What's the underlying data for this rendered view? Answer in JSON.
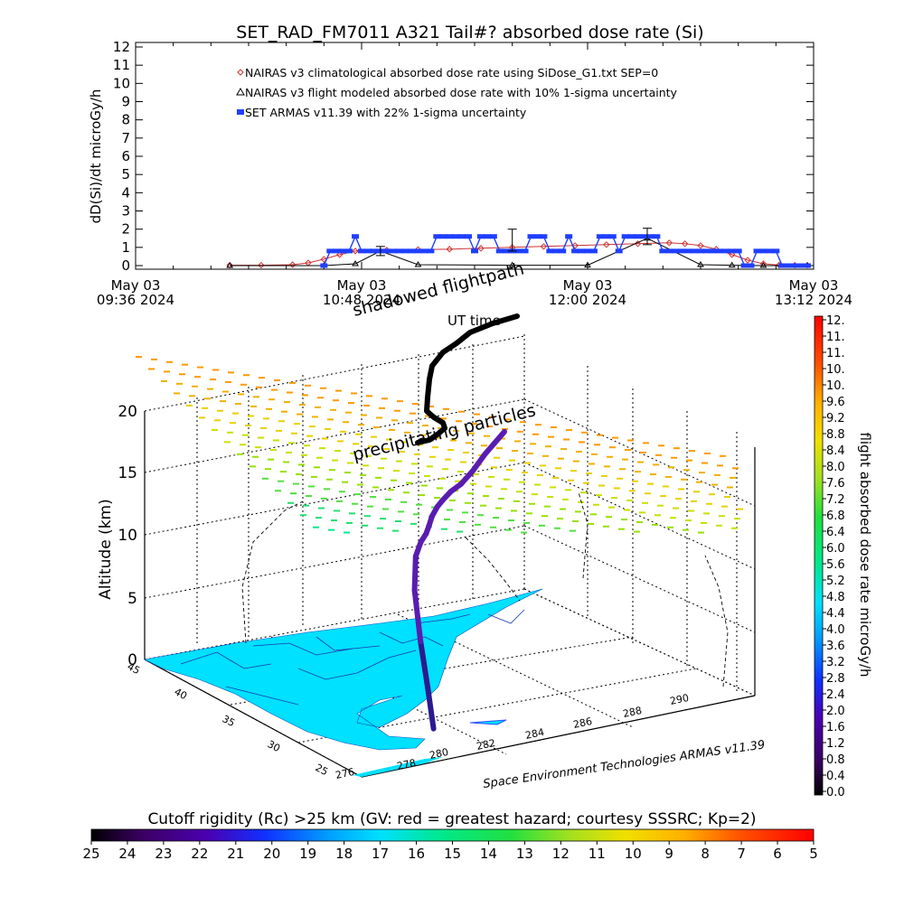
{
  "chart_data": [
    {
      "type": "line",
      "title": "SET_RAD_FM7011  A321 Tail#? absorbed dose rate (Si)",
      "ylabel": "dD(Si)/dt microGy/h",
      "ylim": [
        0,
        12
      ],
      "yticks": [
        "0",
        "1",
        "2",
        "3",
        "4",
        "5",
        "6",
        "7",
        "8",
        "9",
        "10",
        "11",
        "12"
      ],
      "xlim_minutes": [
        0,
        216
      ],
      "xticks": [
        {
          "line1": "May 03",
          "line2": "09:36 2024",
          "t": 0
        },
        {
          "line1": "May 03",
          "line2": "10:48 2024",
          "t": 72
        },
        {
          "line1": "May 03",
          "line2": "12:00 2024",
          "t": 144
        },
        {
          "line1": "May 03",
          "line2": "13:12 2024",
          "t": 216
        }
      ],
      "grid": false,
      "legend_position": "top-left",
      "series": [
        {
          "name": "NAIRAS v3 climatological absorbed dose rate using SiDose_G1.txt SEP=0",
          "color": "#cc3333",
          "marker": "diamond",
          "x": [
            30,
            40,
            50,
            55,
            60,
            65,
            70,
            80,
            90,
            100,
            110,
            120,
            130,
            140,
            150,
            160,
            170,
            175,
            180,
            185,
            190,
            195,
            200,
            205,
            210,
            214
          ],
          "values": [
            0.02,
            0.02,
            0.05,
            0.15,
            0.35,
            0.6,
            0.8,
            0.85,
            0.88,
            0.9,
            0.95,
            1.0,
            1.05,
            1.1,
            1.15,
            1.2,
            1.25,
            1.2,
            1.1,
            0.9,
            0.6,
            0.3,
            0.1,
            0.03,
            0.02,
            0.02
          ]
        },
        {
          "name": "NAIRAS v3 flight modeled absorbed dose rate with 10% 1-sigma uncertainty",
          "color": "#000000",
          "marker": "triangle",
          "x": [
            30,
            60,
            70,
            78,
            90,
            120,
            144,
            163,
            180,
            190,
            200,
            214
          ],
          "values": [
            0,
            0,
            0.1,
            0.8,
            0.05,
            0.02,
            0.02,
            1.5,
            0.05,
            0.02,
            0,
            0
          ]
        },
        {
          "name": "SET ARMAS v11.39 with 22% 1-sigma uncertainty",
          "color": "#1f3fff",
          "marker": "square",
          "x": [
            60,
            62,
            64,
            66,
            68,
            70,
            72,
            74,
            76,
            78,
            80,
            82,
            84,
            86,
            88,
            90,
            92,
            94,
            96,
            98,
            100,
            102,
            104,
            106,
            108,
            110,
            112,
            114,
            116,
            118,
            120,
            122,
            124,
            126,
            128,
            130,
            132,
            134,
            136,
            138,
            140,
            142,
            144,
            146,
            148,
            150,
            152,
            154,
            156,
            158,
            160,
            162,
            164,
            166,
            168,
            170,
            172,
            174,
            176,
            178,
            180,
            182,
            184,
            186,
            188,
            190,
            192,
            194,
            196,
            198,
            200,
            202,
            204,
            206,
            208,
            210,
            212,
            214
          ],
          "values": [
            0,
            0.8,
            0.8,
            0.8,
            0.8,
            1.6,
            0.8,
            0.8,
            0.8,
            0.8,
            0.8,
            0.8,
            0.8,
            0.8,
            0.8,
            0.8,
            0.8,
            0.8,
            1.6,
            1.6,
            1.6,
            1.6,
            1.6,
            1.6,
            0.8,
            1.6,
            1.6,
            1.6,
            0.8,
            0.8,
            0.8,
            0.8,
            0.8,
            1.6,
            1.6,
            1.6,
            0.8,
            0.8,
            0.8,
            1.6,
            0.8,
            0.8,
            0.8,
            0.8,
            1.6,
            1.6,
            1.6,
            0.8,
            1.6,
            1.6,
            1.6,
            1.6,
            1.6,
            1.6,
            0.8,
            0.8,
            0.8,
            0.8,
            0.8,
            0.8,
            0.8,
            0.8,
            0.8,
            0.8,
            0.8,
            0.8,
            0.8,
            0,
            0,
            0.8,
            0.8,
            0.8,
            0.8,
            0,
            0,
            0,
            0,
            0
          ]
        }
      ],
      "error_bars": [
        {
          "t": 78,
          "value": 0.8,
          "err": 0.25
        },
        {
          "t": 120,
          "value": 1.4,
          "err": 0.6
        },
        {
          "t": 163,
          "value": 1.6,
          "err": 0.45
        }
      ]
    },
    {
      "type": "scatter",
      "projection": "3d",
      "zlabel": "Altitude (km)",
      "zticks": [
        "0",
        "5",
        "10",
        "15",
        "20"
      ],
      "zlim": [
        0,
        20
      ],
      "lat_ticks": [
        "45",
        "40",
        "35",
        "30",
        "25"
      ],
      "lon_ticks": [
        "276",
        "278",
        "280",
        "282",
        "284",
        "286",
        "288",
        "290"
      ],
      "annotations": [
        "shadowed flightpath",
        "UT time",
        "precipitating particles"
      ],
      "footer": "Space Environment Technologies ARMAS v11.39",
      "flight_track": {
        "lat": [
          29.5,
          29.8,
          30.5,
          31.5,
          32.5,
          33.0,
          33.5,
          34.0,
          34.5,
          35.0,
          35.4,
          35.8,
          36.2,
          36.8,
          37.5,
          38.0,
          38.5
        ],
        "lon": [
          280.6,
          280.4,
          280.2,
          280.1,
          280.3,
          280.6,
          280.9,
          281.1,
          281.3,
          281.6,
          281.9,
          282.3,
          282.8,
          283.4,
          284.0,
          284.5,
          285.0
        ],
        "alt_km": [
          0,
          3,
          6,
          9,
          10.5,
          11,
          11,
          11,
          11.1,
          11.2,
          11.2,
          11.3,
          11.3,
          11.5,
          11.8,
          12,
          12.2
        ]
      }
    }
  ],
  "dose_colorbar": {
    "label": "flight absorbed dose rate microGy/h",
    "ticks": [
      "12.",
      "11.",
      "11.",
      "10.",
      "10.",
      "9.6",
      "9.2",
      "8.8",
      "8.4",
      "8.0",
      "7.6",
      "7.2",
      "6.8",
      "6.4",
      "6.0",
      "5.6",
      "5.2",
      "4.8",
      "4.4",
      "4.0",
      "3.6",
      "3.2",
      "2.8",
      "2.4",
      "2.0",
      "1.6",
      "1.2",
      "0.8",
      "0.4",
      "0.0"
    ]
  },
  "rigidity_colorbar": {
    "label": "Cutoff rigidity (Rc) >25 km (GV: red = greatest hazard; courtesy SSSRC; Kp=2)",
    "ticks": [
      "25",
      "24",
      "23",
      "22",
      "21",
      "20",
      "19",
      "18",
      "17",
      "16",
      "15",
      "14",
      "13",
      "12",
      "11",
      "10",
      "9",
      "8",
      "7",
      "6",
      "5"
    ]
  }
}
